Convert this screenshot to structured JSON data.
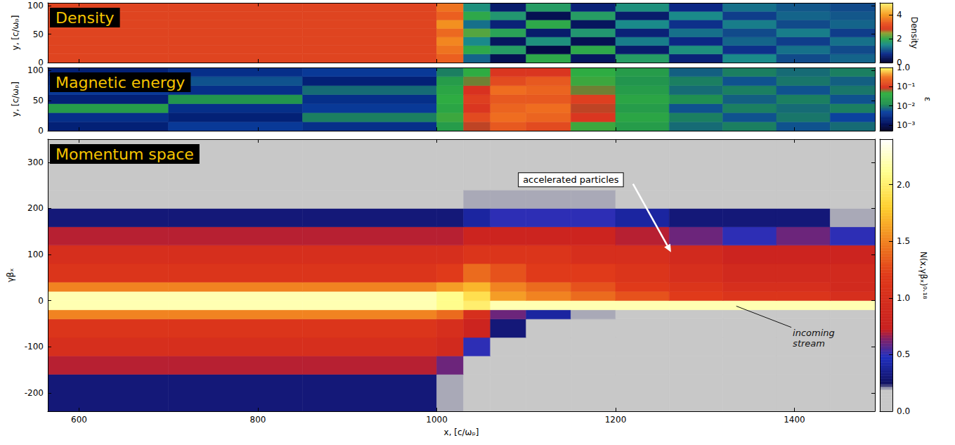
{
  "chart_data": [
    {
      "type": "heatmap",
      "title": "Density",
      "ylabel": "y, [c/ωₚ]",
      "xlim": [
        565,
        1490
      ],
      "xticks": [
        600,
        800,
        1000,
        1200,
        1400
      ],
      "ylim": [
        0,
        105
      ],
      "yticks": [
        0,
        50,
        100
      ],
      "tick_labels": "y",
      "x_bins": [
        565,
        700,
        850,
        1000,
        1030,
        1060,
        1100,
        1150,
        1200,
        1260,
        1320,
        1380,
        1440,
        1490
      ],
      "y_bins": [
        0,
        15,
        30,
        45,
        60,
        75,
        90,
        105
      ],
      "cells": [
        [
          3,
          3,
          3,
          3.4,
          1.2,
          0.3,
          2,
          0.4,
          1.8,
          0.6,
          1.5,
          1.0,
          1.2
        ],
        [
          3,
          3,
          3,
          3.6,
          2,
          1.8,
          0.2,
          2,
          0.5,
          1.6,
          0.8,
          1.3,
          1.0
        ],
        [
          3,
          3,
          3,
          3.8,
          1.5,
          0.4,
          1.6,
          0.3,
          1.4,
          0.7,
          1.2,
          0.9,
          1.3
        ],
        [
          3,
          3,
          3,
          3.5,
          2.2,
          1.9,
          0.5,
          1.7,
          0.6,
          1.3,
          1.0,
          1.4,
          0.9
        ],
        [
          3,
          3,
          3,
          3.9,
          1.3,
          0.6,
          2,
          0.4,
          1.5,
          0.8,
          1.4,
          1.0,
          1.2
        ],
        [
          3,
          3,
          3,
          3.4,
          2,
          1.7,
          0.3,
          1.8,
          0.5,
          1.5,
          0.9,
          1.2,
          1.1
        ],
        [
          3,
          3,
          3,
          3.6,
          1.6,
          0.5,
          1.8,
          0.6,
          1.6,
          0.7,
          1.3,
          1.1,
          1.0
        ]
      ],
      "colorbar": {
        "label": "Density",
        "range": [
          0,
          5
        ],
        "ticks": [
          0,
          2,
          4
        ]
      }
    },
    {
      "type": "heatmap",
      "title": "Magnetic energy",
      "ylabel": "y, [c/ωₚ]",
      "xlim": [
        565,
        1490
      ],
      "xticks": [
        600,
        800,
        1000,
        1200,
        1400
      ],
      "ylim": [
        0,
        105
      ],
      "yticks": [
        0,
        50,
        100
      ],
      "tick_labels": "y",
      "x_bins": [
        565,
        700,
        850,
        1000,
        1030,
        1060,
        1100,
        1150,
        1200,
        1260,
        1320,
        1380,
        1440,
        1490
      ],
      "y_bins": [
        0,
        15,
        30,
        45,
        60,
        75,
        90,
        105
      ],
      "cells": [
        [
          0.002,
          0.004,
          0.003,
          0.02,
          0.08,
          0.2,
          0.15,
          0.05,
          0.02,
          0.008,
          0.01,
          0.006,
          0.008
        ],
        [
          0.003,
          0.002,
          0.01,
          0.05,
          0.15,
          0.3,
          0.25,
          0.1,
          0.03,
          0.01,
          0.006,
          0.009,
          0.005
        ],
        [
          0.02,
          0.003,
          0.004,
          0.03,
          0.1,
          0.25,
          0.3,
          0.08,
          0.02,
          0.006,
          0.01,
          0.008,
          0.01
        ],
        [
          0.002,
          0.015,
          0.003,
          0.04,
          0.12,
          0.2,
          0.2,
          0.12,
          0.03,
          0.012,
          0.007,
          0.01,
          0.006
        ],
        [
          0.004,
          0.003,
          0.008,
          0.03,
          0.09,
          0.3,
          0.25,
          0.06,
          0.02,
          0.008,
          0.01,
          0.006,
          0.009
        ],
        [
          0.003,
          0.006,
          0.002,
          0.02,
          0.06,
          0.15,
          0.2,
          0.05,
          0.015,
          0.01,
          0.006,
          0.009,
          0.007
        ],
        [
          0.002,
          0.003,
          0.004,
          0.01,
          0.04,
          0.1,
          0.1,
          0.04,
          0.02,
          0.007,
          0.01,
          0.008,
          0.01
        ]
      ],
      "colorbar": {
        "label": "ε",
        "log": true,
        "range": [
          0.0005,
          1
        ],
        "ticks": [
          {
            "value": 0.001,
            "label": "10⁻³"
          },
          {
            "value": 0.01,
            "label": "10⁻²"
          },
          {
            "value": 0.1,
            "label": "10⁻¹"
          },
          {
            "value": 1,
            "label": "1.0"
          }
        ]
      }
    },
    {
      "type": "heatmap",
      "title": "Momentum space",
      "xlabel": "x, [c/ωₚ]",
      "ylabel": "γβₓ",
      "xlim": [
        565,
        1490
      ],
      "xticks": [
        600,
        800,
        1000,
        1200,
        1400
      ],
      "ylim": [
        -240,
        350
      ],
      "yticks": [
        -200,
        -100,
        0,
        100,
        200,
        300
      ],
      "x_bins": [
        565,
        700,
        850,
        1000,
        1030,
        1060,
        1100,
        1150,
        1200,
        1260,
        1320,
        1380,
        1440,
        1490
      ],
      "y_bins": [
        -240,
        -160,
        -120,
        -80,
        -40,
        -20,
        0,
        20,
        40,
        80,
        120,
        160,
        200,
        240,
        350
      ],
      "cells": [
        [
          0.3,
          0.3,
          0.3,
          0.2,
          0,
          0,
          0,
          0,
          0,
          0,
          0,
          0,
          0
        ],
        [
          0.7,
          0.7,
          0.7,
          0.6,
          0,
          0,
          0,
          0,
          0,
          0,
          0,
          0,
          0
        ],
        [
          1.0,
          1.0,
          1.0,
          0.9,
          0.5,
          0,
          0,
          0,
          0,
          0,
          0,
          0,
          0
        ],
        [
          1.1,
          1.1,
          1.1,
          1.0,
          0.8,
          0.3,
          0,
          0,
          0,
          0,
          0,
          0,
          0
        ],
        [
          1.5,
          1.5,
          1.5,
          1.4,
          1.0,
          0.6,
          0.4,
          0.2,
          0,
          0,
          0,
          0,
          0
        ],
        [
          2.2,
          2.2,
          2.2,
          2.1,
          2.0,
          2.2,
          2.2,
          2.2,
          2.2,
          2.2,
          2.2,
          2.2,
          2.2
        ],
        [
          2.2,
          2.2,
          2.2,
          2.1,
          1.9,
          1.6,
          1.5,
          1.4,
          1.3,
          1.2,
          1.1,
          1.1,
          1.0
        ],
        [
          1.5,
          1.5,
          1.5,
          1.6,
          1.7,
          1.5,
          1.4,
          1.3,
          1.2,
          1.1,
          1.0,
          1.0,
          0.9
        ],
        [
          1.1,
          1.1,
          1.1,
          1.2,
          1.4,
          1.3,
          1.2,
          1.2,
          1.1,
          1.0,
          0.9,
          0.9,
          0.9
        ],
        [
          1.0,
          1.0,
          1.0,
          1.0,
          1.1,
          1.1,
          1.1,
          1.0,
          1.0,
          0.9,
          0.8,
          0.8,
          0.8
        ],
        [
          0.7,
          0.7,
          0.7,
          0.7,
          0.8,
          0.8,
          0.8,
          0.8,
          0.7,
          0.6,
          0.5,
          0.6,
          0.5
        ],
        [
          0.3,
          0.3,
          0.3,
          0.3,
          0.4,
          0.5,
          0.5,
          0.5,
          0.4,
          0.3,
          0.3,
          0.3,
          0.2
        ],
        [
          0.1,
          0.1,
          0.1,
          0.1,
          0.2,
          0.2,
          0.2,
          0.2,
          0.15,
          0.1,
          0.1,
          0.1,
          0.05
        ],
        [
          0,
          0,
          0,
          0,
          0.05,
          0.05,
          0.05,
          0.03,
          0,
          0,
          0,
          0,
          0
        ]
      ],
      "annotations": [
        "accelerated particles",
        "incoming stream"
      ],
      "colorbar": {
        "label": "N(x,γβₓ)⁰·¹⁸",
        "range": [
          0,
          2.4
        ],
        "ticks": [
          {
            "value": 0,
            "label": "0.0"
          },
          {
            "value": 0.5,
            "label": "0.5"
          },
          {
            "value": 1,
            "label": "1.0"
          },
          {
            "value": 1.5,
            "label": "1.5"
          },
          {
            "value": 2,
            "label": "2.0"
          }
        ]
      }
    }
  ]
}
